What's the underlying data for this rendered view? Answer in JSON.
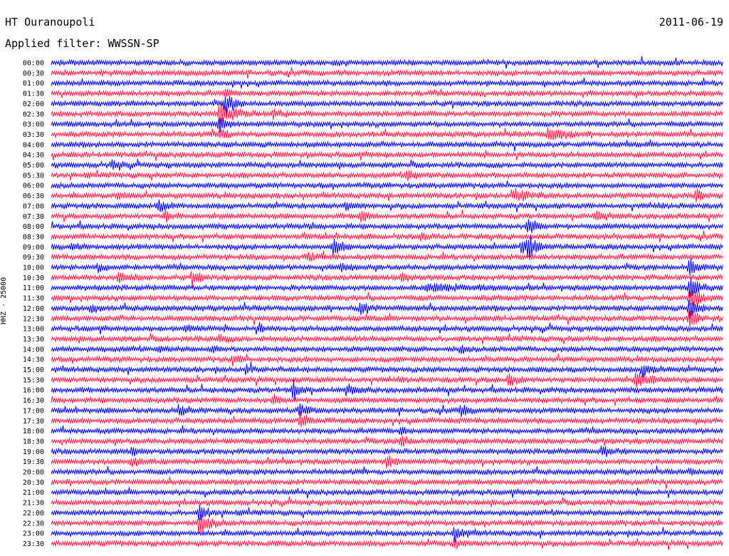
{
  "header": {
    "station": "HT Ouranoupoli",
    "date": "2011-06-19",
    "filter": "Applied filter: WWSSN-SP"
  },
  "chart_data": {
    "type": "line",
    "chart_kind": "helicorder",
    "ylabel": "HHZ - 25000",
    "row_labels": [
      "00:00",
      "00:30",
      "01:00",
      "01:30",
      "02:00",
      "02:30",
      "03:00",
      "03:30",
      "04:00",
      "04:30",
      "05:00",
      "05:30",
      "06:00",
      "06:30",
      "07:00",
      "07:30",
      "08:00",
      "08:30",
      "09:00",
      "09:30",
      "10:00",
      "10:30",
      "11:00",
      "11:30",
      "12:00",
      "12:30",
      "13:00",
      "13:30",
      "14:00",
      "14:30",
      "15:00",
      "15:30",
      "16:00",
      "16:30",
      "17:00",
      "17:30",
      "18:00",
      "18:30",
      "19:00",
      "19:30",
      "20:00",
      "20:30",
      "21:00",
      "21:30",
      "22:00",
      "22:30",
      "23:00",
      "23:30"
    ],
    "trace_colors": [
      "#0000e6",
      "#ff1a4a"
    ],
    "events": [
      {
        "row": 1,
        "t": 0.27,
        "amp": 0.3,
        "dur": 0.02
      },
      {
        "row": 2,
        "t": 0.27,
        "amp": 0.5,
        "dur": 0.01
      },
      {
        "row": 3,
        "t": 0.26,
        "amp": 1.2,
        "dur": 0.02
      },
      {
        "row": 4,
        "t": 0.26,
        "amp": 2.5,
        "dur": 0.03
      },
      {
        "row": 5,
        "t": 0.25,
        "amp": 2.6,
        "dur": 0.06
      },
      {
        "row": 5,
        "t": 0.33,
        "amp": 1.0,
        "dur": 0.03
      },
      {
        "row": 6,
        "t": 0.25,
        "amp": 2.0,
        "dur": 0.03
      },
      {
        "row": 7,
        "t": 0.25,
        "amp": 1.5,
        "dur": 0.03
      },
      {
        "row": 7,
        "t": 0.74,
        "amp": 1.4,
        "dur": 0.06
      },
      {
        "row": 10,
        "t": 0.09,
        "amp": 1.0,
        "dur": 0.04
      },
      {
        "row": 11,
        "t": 0.53,
        "amp": 1.0,
        "dur": 0.04
      },
      {
        "row": 13,
        "t": 0.1,
        "amp": 0.6,
        "dur": 0.04
      },
      {
        "row": 13,
        "t": 0.69,
        "amp": 1.4,
        "dur": 0.06
      },
      {
        "row": 13,
        "t": 0.96,
        "amp": 1.3,
        "dur": 0.03
      },
      {
        "row": 14,
        "t": 0.16,
        "amp": 1.0,
        "dur": 0.04
      },
      {
        "row": 14,
        "t": 0.44,
        "amp": 1.2,
        "dur": 0.03
      },
      {
        "row": 15,
        "t": 0.17,
        "amp": 1.2,
        "dur": 0.03
      },
      {
        "row": 15,
        "t": 0.46,
        "amp": 1.4,
        "dur": 0.03
      },
      {
        "row": 15,
        "t": 0.81,
        "amp": 1.0,
        "dur": 0.04
      },
      {
        "row": 16,
        "t": 0.71,
        "amp": 2.0,
        "dur": 0.03
      },
      {
        "row": 17,
        "t": 0.55,
        "amp": 0.8,
        "dur": 0.03
      },
      {
        "row": 18,
        "t": 0.03,
        "amp": 0.6,
        "dur": 0.03
      },
      {
        "row": 18,
        "t": 0.42,
        "amp": 1.6,
        "dur": 0.04
      },
      {
        "row": 18,
        "t": 0.7,
        "amp": 1.2,
        "dur": 0.06
      },
      {
        "row": 18,
        "t": 0.71,
        "amp": 2.0,
        "dur": 0.03
      },
      {
        "row": 19,
        "t": 0.38,
        "amp": 1.0,
        "dur": 0.05
      },
      {
        "row": 20,
        "t": 0.07,
        "amp": 1.0,
        "dur": 0.03
      },
      {
        "row": 20,
        "t": 0.43,
        "amp": 0.8,
        "dur": 0.04
      },
      {
        "row": 20,
        "t": 0.95,
        "amp": 2.0,
        "dur": 0.03
      },
      {
        "row": 21,
        "t": 0.1,
        "amp": 0.8,
        "dur": 0.05
      },
      {
        "row": 21,
        "t": 0.21,
        "amp": 1.4,
        "dur": 0.03
      },
      {
        "row": 21,
        "t": 0.52,
        "amp": 0.8,
        "dur": 0.05
      },
      {
        "row": 22,
        "t": 0.56,
        "amp": 0.7,
        "dur": 0.16
      },
      {
        "row": 22,
        "t": 0.95,
        "amp": 2.4,
        "dur": 0.04
      },
      {
        "row": 23,
        "t": 0.95,
        "amp": 2.0,
        "dur": 0.05
      },
      {
        "row": 24,
        "t": 0.06,
        "amp": 1.0,
        "dur": 0.03
      },
      {
        "row": 24,
        "t": 0.46,
        "amp": 1.2,
        "dur": 0.04
      },
      {
        "row": 24,
        "t": 0.95,
        "amp": 2.5,
        "dur": 0.03
      },
      {
        "row": 25,
        "t": 0.95,
        "amp": 2.0,
        "dur": 0.03
      },
      {
        "row": 26,
        "t": 0.2,
        "amp": 0.8,
        "dur": 0.04
      },
      {
        "row": 26,
        "t": 0.31,
        "amp": 0.9,
        "dur": 0.02
      },
      {
        "row": 27,
        "t": 0.25,
        "amp": 0.8,
        "dur": 0.03
      },
      {
        "row": 28,
        "t": 0.16,
        "amp": 0.8,
        "dur": 0.02
      },
      {
        "row": 28,
        "t": 0.24,
        "amp": 0.7,
        "dur": 0.02
      },
      {
        "row": 28,
        "t": 0.61,
        "amp": 0.7,
        "dur": 0.02
      },
      {
        "row": 29,
        "t": 0.27,
        "amp": 1.0,
        "dur": 0.03
      },
      {
        "row": 30,
        "t": 0.29,
        "amp": 0.8,
        "dur": 0.03
      },
      {
        "row": 30,
        "t": 0.88,
        "amp": 1.2,
        "dur": 0.05
      },
      {
        "row": 31,
        "t": 0.68,
        "amp": 1.6,
        "dur": 0.03
      },
      {
        "row": 31,
        "t": 0.87,
        "amp": 1.6,
        "dur": 0.06
      },
      {
        "row": 32,
        "t": 0.36,
        "amp": 2.0,
        "dur": 0.03
      },
      {
        "row": 32,
        "t": 0.44,
        "amp": 1.0,
        "dur": 0.04
      },
      {
        "row": 33,
        "t": 0.33,
        "amp": 1.0,
        "dur": 0.03
      },
      {
        "row": 34,
        "t": 0.19,
        "amp": 1.2,
        "dur": 0.04
      },
      {
        "row": 34,
        "t": 0.37,
        "amp": 1.2,
        "dur": 0.04
      },
      {
        "row": 34,
        "t": 0.61,
        "amp": 1.0,
        "dur": 0.03
      },
      {
        "row": 35,
        "t": 0.37,
        "amp": 1.8,
        "dur": 0.03
      },
      {
        "row": 36,
        "t": 0.52,
        "amp": 0.8,
        "dur": 0.02
      },
      {
        "row": 37,
        "t": 0.52,
        "amp": 1.4,
        "dur": 0.03
      },
      {
        "row": 38,
        "t": 0.12,
        "amp": 0.8,
        "dur": 0.03
      },
      {
        "row": 38,
        "t": 0.82,
        "amp": 1.2,
        "dur": 0.04
      },
      {
        "row": 39,
        "t": 0.12,
        "amp": 1.2,
        "dur": 0.04
      },
      {
        "row": 39,
        "t": 0.5,
        "amp": 1.6,
        "dur": 0.03
      },
      {
        "row": 40,
        "t": 0.95,
        "amp": 0.6,
        "dur": 0.02
      },
      {
        "row": 44,
        "t": 0.22,
        "amp": 1.4,
        "dur": 0.04
      },
      {
        "row": 45,
        "t": 0.22,
        "amp": 2.0,
        "dur": 0.05
      },
      {
        "row": 46,
        "t": 0.6,
        "amp": 1.4,
        "dur": 0.04
      },
      {
        "row": 47,
        "t": 0.6,
        "amp": 1.0,
        "dur": 0.03
      }
    ]
  }
}
